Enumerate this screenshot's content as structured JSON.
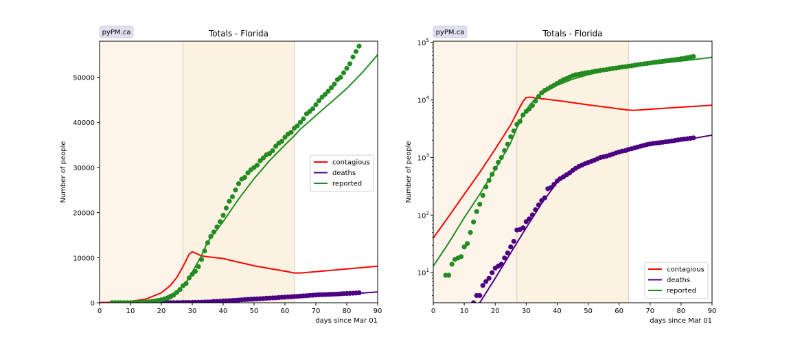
{
  "badge_text": "pyPM.ca",
  "colors": {
    "contagious": "#ff0000",
    "deaths": "#4b0082",
    "reported": "#228b22",
    "band_light": "#fdf5ea",
    "band_dark": "#fcf2e1",
    "badge_bg": "#e0e0f0"
  },
  "chart_data": [
    {
      "type": "line",
      "title": "Totals - Florida",
      "xlabel": "days since Mar 01",
      "ylabel": "Number of people",
      "xlim": [
        0,
        90
      ],
      "ylim": [
        0,
        58000
      ],
      "yscale": "linear",
      "xticks": [
        0,
        10,
        20,
        30,
        40,
        50,
        60,
        70,
        80,
        90
      ],
      "yticks": [
        0,
        10000,
        20000,
        30000,
        40000,
        50000
      ],
      "yticklabels": [
        "0",
        "10000",
        "20000",
        "30000",
        "40000",
        "50000"
      ],
      "shaded_regions": [
        [
          0,
          27
        ],
        [
          27,
          63
        ]
      ],
      "legend_position": "center-right",
      "series": [
        {
          "name": "contagious",
          "kind": "line",
          "x": [
            0,
            5,
            10,
            15,
            20,
            23,
            25,
            27,
            29,
            30,
            31,
            33,
            35,
            40,
            45,
            50,
            55,
            60,
            63,
            65,
            70,
            75,
            80,
            85,
            90
          ],
          "y": [
            50,
            110,
            300,
            800,
            2200,
            3900,
            5600,
            8000,
            10800,
            11300,
            11000,
            10400,
            10200,
            9800,
            9000,
            8200,
            7600,
            7000,
            6600,
            6600,
            6900,
            7200,
            7500,
            7800,
            8100
          ]
        },
        {
          "name": "deaths",
          "kind": "line",
          "x": [
            10,
            20,
            25,
            30,
            35,
            40,
            45,
            50,
            55,
            60,
            63,
            65,
            70,
            75,
            80,
            85,
            90
          ],
          "y": [
            0,
            5,
            15,
            60,
            200,
            450,
            650,
            850,
            1050,
            1250,
            1400,
            1500,
            1700,
            1850,
            2000,
            2150,
            2400
          ]
        },
        {
          "name": "reported",
          "kind": "line",
          "x": [
            20,
            25,
            27,
            29,
            31,
            33,
            35,
            40,
            45,
            50,
            55,
            60,
            63,
            65,
            70,
            75,
            80,
            85,
            90
          ],
          "y": [
            800,
            2500,
            3700,
            5500,
            8000,
            10500,
            13500,
            18000,
            23000,
            27500,
            31500,
            35000,
            37000,
            38500,
            41500,
            44500,
            47500,
            51000,
            55000
          ]
        },
        {
          "name": "deaths",
          "kind": "scatter",
          "x": [
            13,
            14,
            15,
            16,
            17,
            18,
            19,
            20,
            21,
            22,
            23,
            24,
            25,
            26,
            27,
            28,
            29,
            30,
            31,
            32,
            33,
            34,
            35,
            36,
            37,
            38,
            39,
            40,
            41,
            42,
            43,
            44,
            45,
            46,
            47,
            48,
            49,
            50,
            51,
            52,
            53,
            54,
            55,
            56,
            57,
            58,
            59,
            60,
            61,
            62,
            63,
            64,
            65,
            66,
            67,
            68,
            69,
            70,
            71,
            72,
            73,
            74,
            75,
            76,
            77,
            78,
            79,
            80,
            81,
            82,
            83,
            84
          ],
          "y": [
            3,
            4,
            4,
            6,
            7,
            8,
            10,
            12,
            13,
            14,
            18,
            22,
            28,
            35,
            55,
            56,
            60,
            77,
            86,
            101,
            124,
            150,
            179,
            200,
            287,
            300,
            342,
            390,
            430,
            461,
            500,
            540,
            596,
            650,
            700,
            740,
            780,
            820,
            860,
            900,
            950,
            1000,
            1030,
            1060,
            1100,
            1150,
            1200,
            1250,
            1290,
            1320,
            1380,
            1420,
            1470,
            1520,
            1570,
            1630,
            1680,
            1720,
            1760,
            1790,
            1810,
            1840,
            1870,
            1900,
            1940,
            1980,
            2020,
            2060,
            2090,
            2120,
            2160,
            2200
          ]
        },
        {
          "name": "reported",
          "kind": "scatter",
          "x": [
            4,
            5,
            6,
            7,
            8,
            9,
            10,
            11,
            12,
            13,
            14,
            15,
            16,
            17,
            18,
            19,
            20,
            21,
            22,
            23,
            24,
            25,
            26,
            27,
            28,
            29,
            30,
            31,
            32,
            33,
            34,
            35,
            36,
            37,
            38,
            39,
            40,
            41,
            42,
            43,
            44,
            45,
            46,
            47,
            48,
            49,
            50,
            51,
            52,
            53,
            54,
            55,
            56,
            57,
            58,
            59,
            60,
            61,
            62,
            63,
            64,
            65,
            66,
            67,
            68,
            69,
            70,
            71,
            72,
            73,
            74,
            75,
            76,
            77,
            78,
            79,
            80,
            81,
            82,
            83,
            84
          ],
          "y": [
            9,
            9,
            14,
            17,
            18,
            19,
            28,
            32,
            50,
            76,
            115,
            155,
            220,
            310,
            400,
            510,
            650,
            830,
            1000,
            1320,
            1700,
            2300,
            2900,
            3760,
            4250,
            5500,
            6330,
            6960,
            8000,
            9600,
            11500,
            13300,
            14700,
            15700,
            16800,
            18000,
            19400,
            21000,
            22500,
            23500,
            25000,
            26400,
            27400,
            27800,
            28800,
            29500,
            30000,
            30500,
            31500,
            32100,
            32800,
            33100,
            33700,
            34700,
            35400,
            35800,
            36700,
            37400,
            37800,
            38700,
            39200,
            40000,
            40800,
            41900,
            42400,
            43000,
            43900,
            44800,
            45600,
            46200,
            46900,
            47700,
            48500,
            49500,
            50000,
            51000,
            52000,
            53000,
            54500,
            55700,
            56900
          ]
        }
      ]
    },
    {
      "type": "line",
      "title": "Totals - Florida",
      "xlabel": "days since Mar 01",
      "ylabel": "Number of people",
      "xlim": [
        0,
        90
      ],
      "ylim": [
        3,
        105000
      ],
      "yscale": "log",
      "xticks": [
        0,
        10,
        20,
        30,
        40,
        50,
        60,
        70,
        80,
        90
      ],
      "yticks": [
        10,
        100,
        1000,
        10000,
        100000
      ],
      "yticklabels": [
        "10",
        "10",
        "10",
        "10",
        "10"
      ],
      "ytick_superscripts": [
        "1",
        "2",
        "3",
        "4",
        "5"
      ],
      "shaded_regions": [
        [
          0,
          27
        ],
        [
          27,
          63
        ]
      ],
      "legend_position": "lower-right",
      "series": [
        {
          "name": "contagious",
          "kind": "line",
          "x": [
            0,
            5,
            10,
            15,
            20,
            25,
            27,
            29,
            30,
            31,
            33,
            35,
            40,
            45,
            50,
            55,
            60,
            63,
            65,
            70,
            75,
            80,
            85,
            90
          ],
          "y": [
            40,
            95,
            230,
            550,
            1400,
            3700,
            6000,
            9500,
            11000,
            11200,
            10800,
            10500,
            9800,
            9000,
            8200,
            7600,
            7000,
            6700,
            6600,
            6900,
            7200,
            7500,
            7800,
            8100
          ]
        },
        {
          "name": "deaths",
          "kind": "line",
          "x": [
            15,
            20,
            25,
            30,
            35,
            40,
            45,
            50,
            55,
            60,
            63,
            65,
            70,
            75,
            80,
            85,
            90
          ],
          "y": [
            3,
            8,
            22,
            60,
            160,
            370,
            600,
            850,
            1050,
            1250,
            1400,
            1500,
            1700,
            1850,
            2000,
            2200,
            2450
          ]
        },
        {
          "name": "reported",
          "kind": "line",
          "x": [
            0,
            5,
            10,
            15,
            20,
            25,
            27,
            29,
            31,
            33,
            35,
            40,
            45,
            50,
            55,
            60,
            63,
            65,
            70,
            75,
            80,
            85,
            90
          ],
          "y": [
            13,
            33,
            90,
            230,
            620,
            1800,
            3300,
            5500,
            8000,
            10500,
            13000,
            18000,
            23000,
            27500,
            31500,
            35000,
            37000,
            38500,
            41500,
            44500,
            47500,
            51000,
            55000
          ]
        },
        {
          "name": "deaths",
          "kind": "scatter",
          "x": [
            13,
            14,
            15,
            16,
            17,
            18,
            19,
            20,
            21,
            22,
            23,
            24,
            25,
            26,
            27,
            28,
            29,
            30,
            31,
            32,
            33,
            34,
            35,
            36,
            37,
            38,
            39,
            40,
            41,
            42,
            43,
            44,
            45,
            46,
            47,
            48,
            49,
            50,
            51,
            52,
            53,
            54,
            55,
            56,
            57,
            58,
            59,
            60,
            61,
            62,
            63,
            64,
            65,
            66,
            67,
            68,
            69,
            70,
            71,
            72,
            73,
            74,
            75,
            76,
            77,
            78,
            79,
            80,
            81,
            82,
            83,
            84
          ],
          "y": [
            3,
            4,
            4,
            6,
            7,
            8,
            10,
            12,
            13,
            14,
            18,
            22,
            28,
            35,
            55,
            56,
            60,
            77,
            86,
            101,
            124,
            150,
            179,
            200,
            287,
            300,
            342,
            390,
            430,
            461,
            500,
            540,
            596,
            650,
            700,
            740,
            780,
            820,
            860,
            900,
            950,
            1000,
            1030,
            1060,
            1100,
            1150,
            1200,
            1250,
            1290,
            1320,
            1380,
            1420,
            1470,
            1520,
            1570,
            1630,
            1680,
            1720,
            1760,
            1790,
            1810,
            1840,
            1870,
            1900,
            1940,
            1980,
            2020,
            2060,
            2090,
            2120,
            2160,
            2200
          ]
        },
        {
          "name": "reported",
          "kind": "scatter",
          "x": [
            4,
            5,
            6,
            7,
            8,
            9,
            10,
            11,
            12,
            13,
            14,
            15,
            16,
            17,
            18,
            19,
            20,
            21,
            22,
            23,
            24,
            25,
            26,
            27,
            28,
            29,
            30,
            31,
            32,
            33,
            34,
            35,
            36,
            37,
            38,
            39,
            40,
            41,
            42,
            43,
            44,
            45,
            46,
            47,
            48,
            49,
            50,
            51,
            52,
            53,
            54,
            55,
            56,
            57,
            58,
            59,
            60,
            61,
            62,
            63,
            64,
            65,
            66,
            67,
            68,
            69,
            70,
            71,
            72,
            73,
            74,
            75,
            76,
            77,
            78,
            79,
            80,
            81,
            82,
            83,
            84
          ],
          "y": [
            9,
            9,
            14,
            17,
            18,
            19,
            28,
            32,
            50,
            76,
            115,
            155,
            220,
            310,
            400,
            510,
            650,
            830,
            1000,
            1320,
            1700,
            2300,
            2900,
            3760,
            4250,
            5500,
            6330,
            6960,
            8000,
            9600,
            11500,
            13300,
            14700,
            15700,
            16800,
            18000,
            19400,
            21000,
            22500,
            23500,
            25000,
            26400,
            27400,
            27800,
            28800,
            29500,
            30000,
            30500,
            31500,
            32100,
            32800,
            33100,
            33700,
            34700,
            35400,
            35800,
            36700,
            37400,
            37800,
            38700,
            39200,
            40000,
            40800,
            41900,
            42400,
            43000,
            43900,
            44800,
            45600,
            46200,
            46900,
            47700,
            48500,
            49500,
            50000,
            51000,
            52000,
            53000,
            54500,
            55700,
            56900
          ]
        }
      ]
    }
  ]
}
